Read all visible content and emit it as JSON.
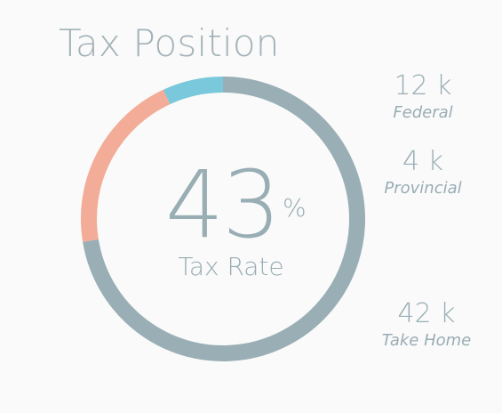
{
  "title": "Tax Position",
  "center": {
    "value": "43",
    "unit": "%",
    "label": "Tax Rate"
  },
  "legend": [
    {
      "amount": "12 k",
      "name": "Federal"
    },
    {
      "amount": "4 k",
      "name": "Provincial"
    },
    {
      "amount": "42 k",
      "name": "Take Home"
    }
  ],
  "chart_data": {
    "type": "pie",
    "categories": [
      "Federal",
      "Provincial",
      "Take Home"
    ],
    "values": [
      12,
      4,
      42
    ],
    "colors": [
      "#f3ac98",
      "#79c8db",
      "#9aafb5"
    ]
  }
}
